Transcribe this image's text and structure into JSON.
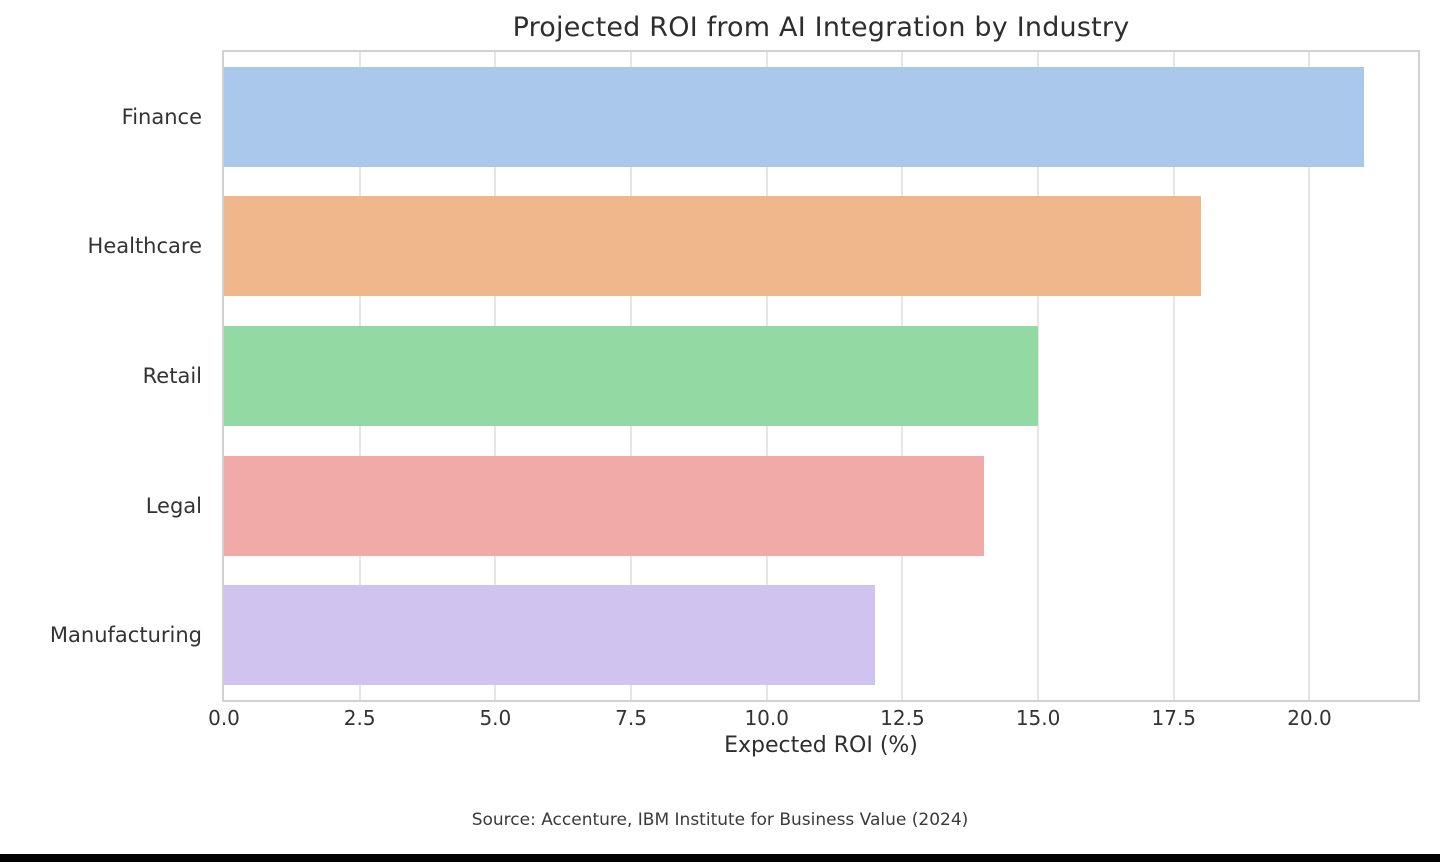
{
  "figure": {
    "title": "Projected ROI from AI Integration by Industry",
    "source": "Source: Accenture, IBM Institute for Business Value (2024)"
  },
  "chart_data": {
    "type": "bar",
    "orientation": "horizontal",
    "title": "Projected ROI from AI Integration by Industry",
    "categories": [
      "Finance",
      "Healthcare",
      "Retail",
      "Legal",
      "Manufacturing"
    ],
    "values": [
      21,
      18,
      15,
      14,
      12
    ],
    "bar_colors": [
      "#a9c8ec",
      "#f0b78c",
      "#93d9a3",
      "#f2aaa9",
      "#d0c3f0"
    ],
    "xlabel": "Expected ROI (%)",
    "ylabel": "",
    "xlim": [
      0,
      22
    ],
    "xticks": [
      0.0,
      2.5,
      5.0,
      7.5,
      10.0,
      12.5,
      15.0,
      17.5,
      20.0
    ],
    "xtick_labels": [
      "0.0",
      "2.5",
      "5.0",
      "7.5",
      "10.0",
      "12.5",
      "15.0",
      "17.5",
      "20.0"
    ],
    "grid": true,
    "grid_color": "#e6e6e6",
    "spine_color": "#d2d2d2",
    "text_color": "#333333",
    "legend": "none",
    "annotation": "Source: Accenture, IBM Institute for Business Value (2024)"
  }
}
